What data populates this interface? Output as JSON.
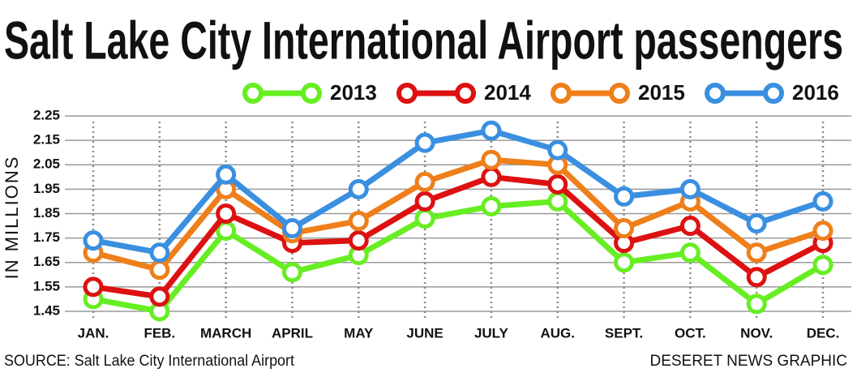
{
  "chart_data": {
    "type": "line",
    "title": "Salt Lake City International Airport passengers",
    "ylabel": "IN MILLIONS",
    "source": "SOURCE: Salt Lake City International Airport",
    "credit": "DESERET NEWS GRAPHIC",
    "categories": [
      "JAN.",
      "FEB.",
      "MARCH",
      "APRIL",
      "MAY",
      "JUNE",
      "JULY",
      "AUG.",
      "SEPT.",
      "OCT.",
      "NOV.",
      "DEC."
    ],
    "series": [
      {
        "name": "2013",
        "color": "#66ee22",
        "values": [
          1.5,
          1.45,
          1.78,
          1.61,
          1.68,
          1.83,
          1.88,
          1.9,
          1.65,
          1.69,
          1.48,
          1.64
        ]
      },
      {
        "name": "2014",
        "color": "#dd1111",
        "values": [
          1.55,
          1.51,
          1.85,
          1.73,
          1.74,
          1.9,
          2.0,
          1.97,
          1.73,
          1.8,
          1.59,
          1.73
        ]
      },
      {
        "name": "2015",
        "color": "#ee7f1a",
        "values": [
          1.69,
          1.62,
          1.95,
          1.77,
          1.82,
          1.98,
          2.07,
          2.05,
          1.79,
          1.9,
          1.69,
          1.78
        ]
      },
      {
        "name": "2016",
        "color": "#3a8fe0",
        "values": [
          1.74,
          1.69,
          2.01,
          1.79,
          1.95,
          2.14,
          2.19,
          2.11,
          1.92,
          1.95,
          1.81,
          1.9
        ]
      }
    ],
    "ylim": [
      1.41,
      2.26
    ],
    "yticks": [
      1.45,
      1.55,
      1.65,
      1.75,
      1.85,
      1.95,
      2.05,
      2.15,
      2.25
    ],
    "grid": true,
    "legend": "top-right"
  }
}
